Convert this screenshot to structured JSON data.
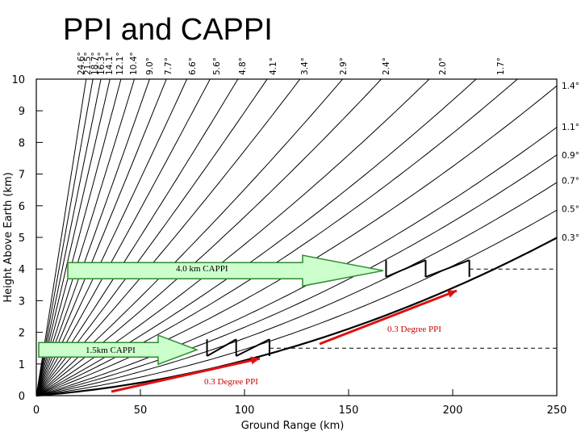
{
  "slide": {
    "title": "PPI and CAPPI"
  },
  "colors": {
    "beam": "#000000",
    "arrow_fill": "#ccffcc",
    "arrow_stroke": "#2e8b2e",
    "annotation": "#cc0000",
    "red_arrow": "#dd1111"
  },
  "chart_data": {
    "type": "line",
    "title": "PPI and CAPPI",
    "xlabel": "Ground Range (km)",
    "ylabel": "Height Above Earth (km)",
    "xlim": [
      0,
      250
    ],
    "ylim": [
      0,
      10
    ],
    "x_ticks": [
      0,
      50,
      100,
      150,
      200,
      250
    ],
    "y_ticks": [
      0,
      1,
      2,
      3,
      4,
      5,
      6,
      7,
      8,
      9,
      10
    ],
    "elevation_angles_top": [
      "24.6°",
      "21.5°",
      "18.7°",
      "16.3°",
      "14.1°",
      "12.1°",
      "10.4°",
      "9.0°",
      "7.7°",
      "6.6°",
      "5.6°",
      "4.8°",
      "4.1°",
      "3.4°",
      "2.9°",
      "2.4°",
      "2.0°",
      "1.7°"
    ],
    "elevation_angles_right": [
      "1.4°",
      "1.1°",
      "0.9°",
      "0.7°",
      "0.5°",
      "0.3°"
    ],
    "elevation_values": [
      24.6,
      21.5,
      18.7,
      16.3,
      14.1,
      12.1,
      10.4,
      9.0,
      7.7,
      6.6,
      5.6,
      4.8,
      4.1,
      3.4,
      2.9,
      2.4,
      2.0,
      1.7,
      1.4,
      1.1,
      0.9,
      0.7,
      0.5,
      0.3
    ],
    "cappi_levels_km": [
      1.5,
      4.0
    ],
    "cappi_1_5_boundary_ranges_km": [
      82,
      96,
      112
    ],
    "cappi_4_0_boundary_ranges_km": [
      168,
      187,
      208
    ],
    "annotations": {
      "cappi_4": "4.0 km CAPPI",
      "cappi_1_5": "1.5km CAPPI",
      "ppi_upper": "0.3 Degree PPI",
      "ppi_lower": "0.3 Degree PPI"
    }
  }
}
